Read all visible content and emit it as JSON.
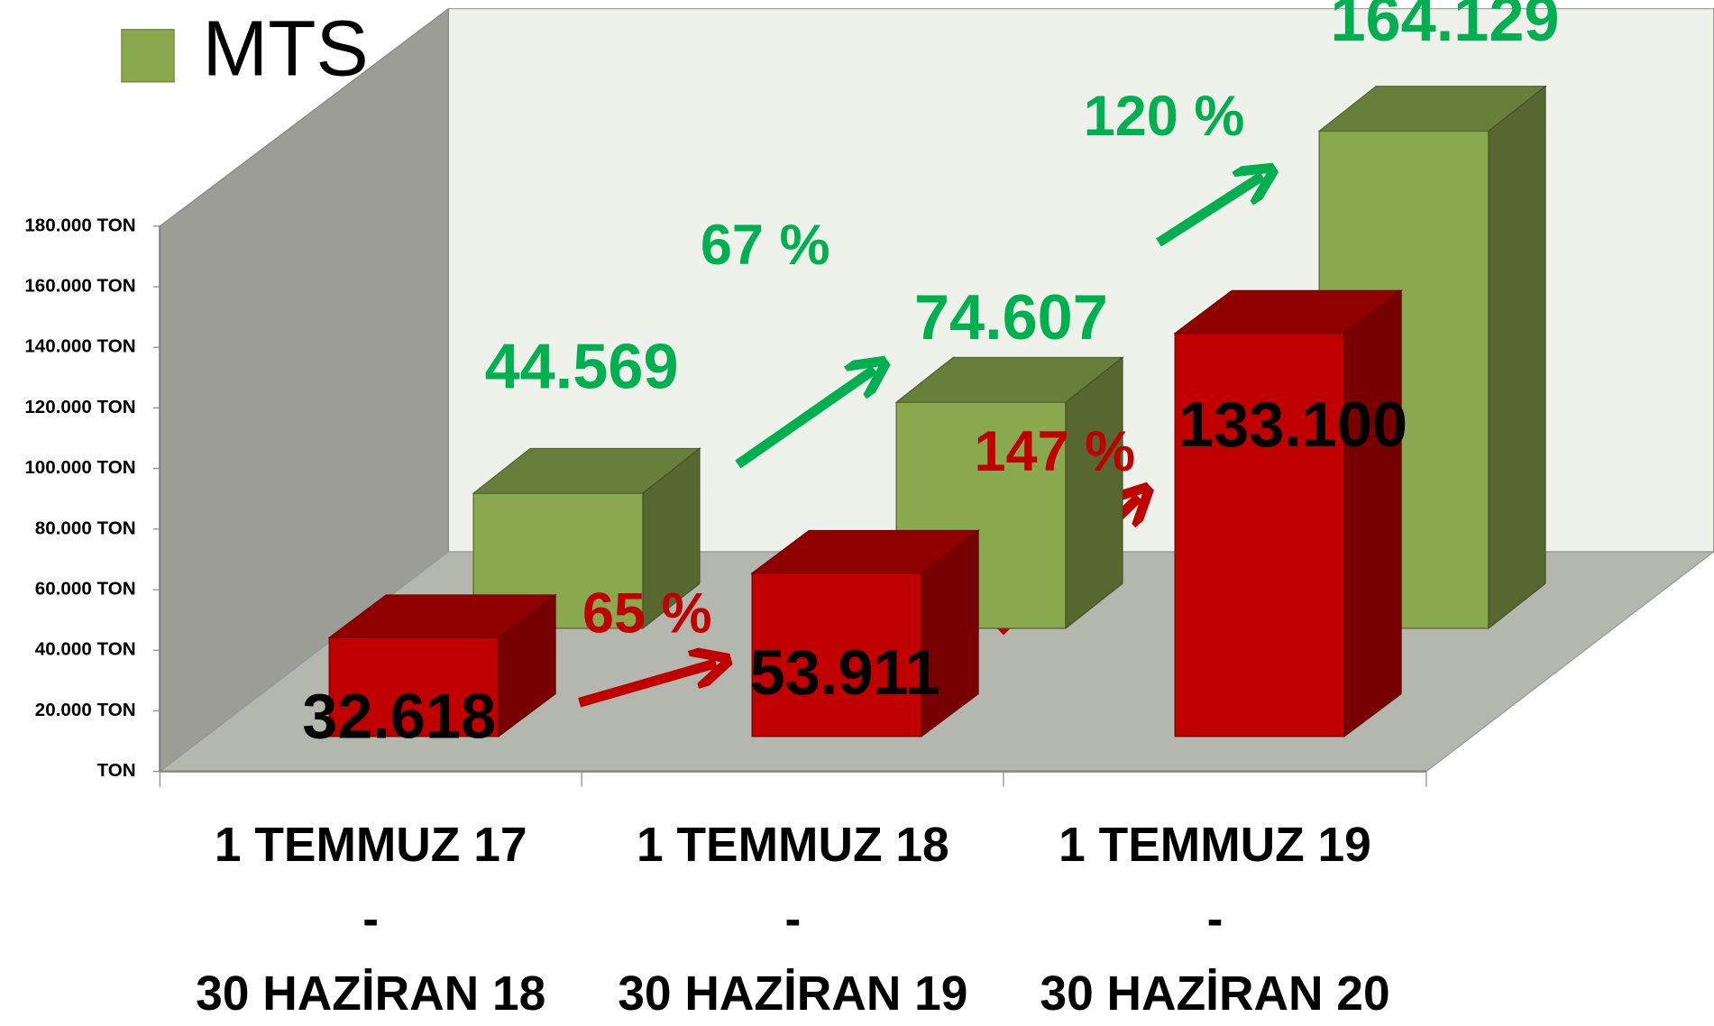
{
  "chart_data": {
    "type": "bar3d",
    "categories": [
      "1 TEMMUZ 17\n-\n30 HAZİRAN 18",
      "1 TEMMUZ 18\n-\n30 HAZİRAN 19",
      "1 TEMMUZ 19\n-\n30 HAZİRAN 20"
    ],
    "series": [
      {
        "color": "#c00000",
        "values": [
          32618,
          53911,
          133100
        ],
        "value_labels": [
          "32.618",
          "53.911",
          "133.100"
        ]
      },
      {
        "name": "MTS",
        "color": "#8aa84e",
        "values": [
          44569,
          74607,
          164129
        ],
        "value_labels": [
          "44.569",
          "74.607",
          "164.129"
        ]
      }
    ],
    "annotations": [
      {
        "text": "65 %",
        "color": "#c00000"
      },
      {
        "text": "147 %",
        "color": "#c00000"
      },
      {
        "text": "67 %",
        "color": "#00b050"
      },
      {
        "text": "120 %",
        "color": "#00b050"
      }
    ],
    "ylim": [
      0,
      180000
    ],
    "yticks": [
      {
        "value": 0,
        "label": "TON"
      },
      {
        "value": 20000,
        "label": "20.000 TON"
      },
      {
        "value": 40000,
        "label": "40.000 TON"
      },
      {
        "value": 60000,
        "label": "60.000 TON"
      },
      {
        "value": 80000,
        "label": "80.000 TON"
      },
      {
        "value": 100000,
        "label": "100.000 TON"
      },
      {
        "value": 120000,
        "label": "120.000 TON"
      },
      {
        "value": 140000,
        "label": "140.000 TON"
      },
      {
        "value": 160000,
        "label": "160.000 TON"
      },
      {
        "value": 180000,
        "label": "180.000 TON"
      }
    ],
    "legend": "top-left"
  }
}
